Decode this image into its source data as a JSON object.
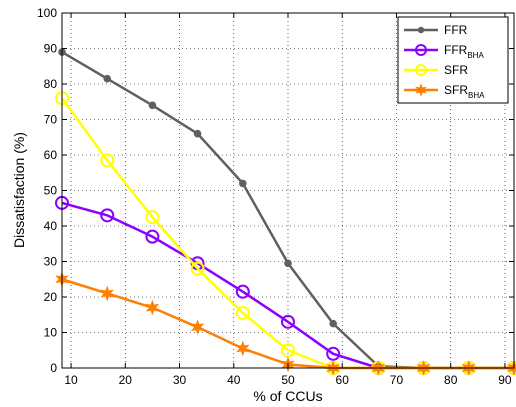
{
  "chart_data": {
    "type": "line",
    "xlabel": "% of CCUs",
    "ylabel": "Dissatisfaction (%)",
    "xlim": [
      8.33,
      91.67
    ],
    "ylim": [
      0,
      100
    ],
    "xticks": [
      10,
      20,
      30,
      40,
      50,
      60,
      70,
      80,
      90
    ],
    "yticks": [
      0,
      10,
      20,
      30,
      40,
      50,
      60,
      70,
      80,
      90,
      100
    ],
    "grid": true,
    "legend_position": "top-right",
    "x": [
      8.33,
      16.67,
      25,
      33.33,
      41.67,
      50,
      58.33,
      66.67,
      75,
      83.33,
      91.67
    ],
    "series": [
      {
        "name": "FFR",
        "name_sub": "",
        "color": "#606060",
        "marker": "dot",
        "values": [
          89,
          81.5,
          74,
          66,
          52,
          29.5,
          12.5,
          0.5,
          0,
          0,
          0
        ]
      },
      {
        "name": "FFR",
        "name_sub": "BHA",
        "color": "#8b00ff",
        "marker": "circle",
        "values": [
          46.5,
          43,
          37,
          29.5,
          21.5,
          13,
          4,
          0,
          0,
          0,
          0
        ]
      },
      {
        "name": "SFR",
        "name_sub": "",
        "color": "#ffff00",
        "marker": "circle",
        "values": [
          76,
          58.5,
          42.5,
          28,
          15.5,
          5,
          0,
          0,
          0,
          0,
          0
        ]
      },
      {
        "name": "SFR",
        "name_sub": "BHA",
        "color": "#ff7f00",
        "marker": "star",
        "values": [
          25,
          21,
          17,
          11.5,
          5.5,
          1,
          0,
          0,
          0,
          0,
          0
        ]
      }
    ]
  }
}
